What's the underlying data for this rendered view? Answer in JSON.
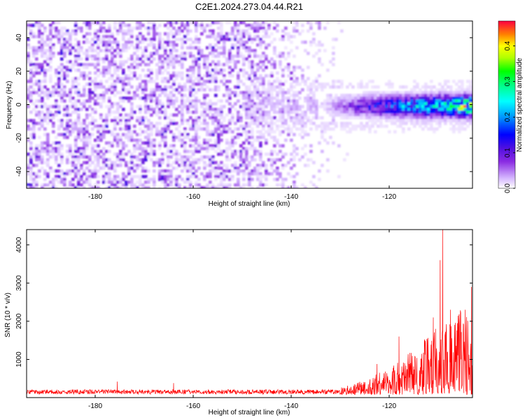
{
  "figure": {
    "title": "C2E1.2024.273.04.44.R21"
  },
  "chart_data": [
    {
      "type": "heatmap",
      "xlabel": "Height of straight line (km)",
      "ylabel": "Frequency (Hz)",
      "xlim": [
        -194,
        -103
      ],
      "ylim": [
        -50,
        50
      ],
      "x_ticks": [
        -180,
        -160,
        -140,
        -120
      ],
      "y_ticks": [
        -40,
        -20,
        0,
        20,
        40
      ],
      "x_tick_labels": [
        "-180",
        "-160",
        "-140",
        "-120"
      ],
      "y_tick_labels": [
        "-40",
        "-20",
        "0",
        "20",
        "40"
      ],
      "colorbar": {
        "label": "Normalized spectral amplitude",
        "range": [
          0.0,
          0.47
        ],
        "ticks": [
          0.0,
          0.1,
          0.2,
          0.3,
          0.4
        ],
        "tick_labels": [
          "0.0",
          "0.1",
          "0.2",
          "0.3",
          "0.4"
        ]
      },
      "features": {
        "noise_amplitude": 0.06,
        "signal_band_center_hz": 0,
        "signal_band_halfwidth_hz": 10,
        "signal_onset_km": -135,
        "signal_peak_amplitude": 0.47
      }
    },
    {
      "type": "line",
      "xlabel": "Height of straight line (km)",
      "ylabel": "SNR (10 * v/v)",
      "xlim": [
        -194,
        -103
      ],
      "ylim": [
        0,
        4400
      ],
      "x_ticks": [
        -180,
        -160,
        -140,
        -120
      ],
      "y_ticks": [
        1000,
        2000,
        3000,
        4000
      ],
      "x_tick_labels": [
        "-180",
        "-160",
        "-140",
        "-120"
      ],
      "y_tick_labels": [
        "1000",
        "2000",
        "3000",
        "4000"
      ],
      "series": [
        {
          "color": "#ff0000",
          "baseline": 150,
          "baseline_noise": 120,
          "rise_start_km": -130,
          "envelope_points": [
            [
              -194,
              180
            ],
            [
              -180,
              200
            ],
            [
              -160,
              200
            ],
            [
              -140,
              220
            ],
            [
              -130,
              280
            ],
            [
              -125,
              450
            ],
            [
              -120,
              800
            ],
            [
              -115,
              1300
            ],
            [
              -112,
              1600
            ],
            [
              -110,
              2100
            ],
            [
              -108,
              1900
            ],
            [
              -105,
              2400
            ],
            [
              -103,
              2800
            ]
          ],
          "peaks": [
            [
              -175.5,
              420
            ],
            [
              -164,
              380
            ],
            [
              -122.5,
              880
            ],
            [
              -118,
              1600
            ],
            [
              -111,
              2100
            ],
            [
              -109.6,
              3600
            ],
            [
              -109.1,
              4400
            ],
            [
              -107.5,
              2300
            ],
            [
              -104.5,
              2300
            ],
            [
              -103.2,
              2900
            ]
          ]
        }
      ]
    }
  ]
}
